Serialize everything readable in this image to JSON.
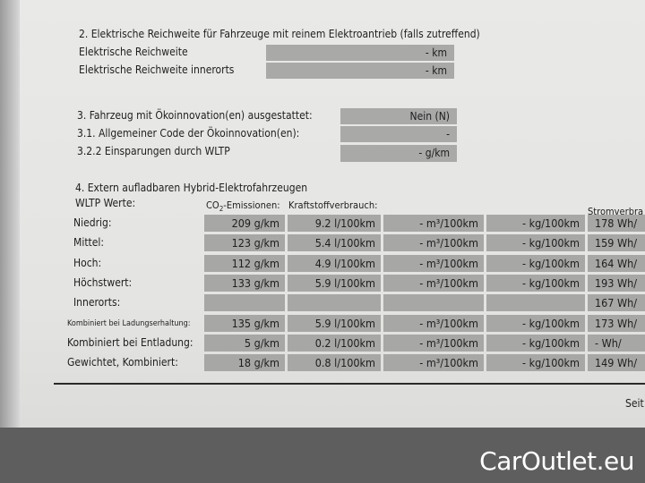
{
  "section2": {
    "heading": "2. Elektrische Reichweite für Fahrzeuge mit reinem Elektroantrieb (falls zutreffend)",
    "rows": [
      {
        "label": "Elektrische Reichweite",
        "value": "-   km"
      },
      {
        "label": "Elektrische Reichweite innerorts",
        "value": "-   km"
      }
    ]
  },
  "section3": {
    "rows": [
      {
        "label": "3. Fahrzeug mit Ökoinnovation(en) ausgestattet:",
        "value": "Nein (N)"
      },
      {
        "label": "3.1. Allgemeiner Code der Ökoinnovation(en):",
        "value": "-"
      },
      {
        "label": "3.2.2 Einsparungen durch WLTP",
        "value": "-    g/km"
      }
    ]
  },
  "section4": {
    "heading": "4. Extern aufladbaren Hybrid-Elektrofahrzeugen",
    "wltp_label": "WLTP Werte:",
    "col_co2_prefix": "CO",
    "col_co2_sub": "2",
    "col_co2_suffix": "-Emissionen:",
    "col_fuel": "Kraftstoffverbrauch:",
    "col_power": "Stromverbra",
    "rows": [
      {
        "label": "Niedrig:",
        "co2": "209  g/km",
        "fuel": "9.2  l/100km",
        "gas": "-  m³/100km",
        "kg": "-  kg/100km",
        "power": "178  Wh/"
      },
      {
        "label": "Mittel:",
        "co2": "123  g/km",
        "fuel": "5.4  l/100km",
        "gas": "-  m³/100km",
        "kg": "-  kg/100km",
        "power": "159  Wh/"
      },
      {
        "label": "Hoch:",
        "co2": "112  g/km",
        "fuel": "4.9  l/100km",
        "gas": "-  m³/100km",
        "kg": "-  kg/100km",
        "power": "164  Wh/"
      },
      {
        "label": "Höchstwert:",
        "co2": "133  g/km",
        "fuel": "5.9  l/100km",
        "gas": "-  m³/100km",
        "kg": "-  kg/100km",
        "power": "193  Wh/"
      },
      {
        "label": "Innerorts:",
        "co2": "",
        "fuel": "",
        "gas": "",
        "kg": "",
        "power": "167  Wh/"
      },
      {
        "label": "Kombiniert bei Ladungserhaltung:",
        "co2": "135  g/km",
        "fuel": "5.9  l/100km",
        "gas": "-  m³/100km",
        "kg": "-  kg/100km",
        "power": "173  Wh/"
      },
      {
        "label": "Kombiniert bei Entladung:",
        "co2": "5  g/km",
        "fuel": "0.2  l/100km",
        "gas": "-  m³/100km",
        "kg": "-  kg/100km",
        "power": "-  Wh/"
      },
      {
        "label": "Gewichtet, Kombiniert:",
        "co2": "18  g/km",
        "fuel": "0.8  l/100km",
        "gas": "-  m³/100km",
        "kg": "-  kg/100km",
        "power": "149  Wh/"
      }
    ]
  },
  "footer": {
    "page": "Seit"
  },
  "watermark": "CarOutlet.eu"
}
